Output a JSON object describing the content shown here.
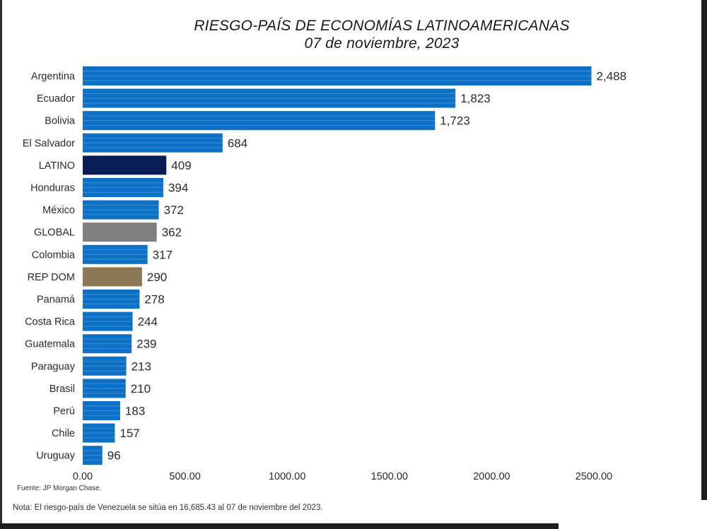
{
  "title": {
    "line1": "RIESGO-PAÍS DE ECONOMÍAS LATINOAMERICANAS",
    "line2": "07 de noviembre, 2023"
  },
  "chart_data": {
    "type": "bar",
    "orientation": "horizontal",
    "title": "RIESGO-PAÍS DE ECONOMÍAS LATINOAMERICANAS 07 de noviembre, 2023",
    "categories": [
      "Argentina",
      "Ecuador",
      "Bolivia",
      "El Salvador",
      "LATINO",
      "Honduras",
      "México",
      "GLOBAL",
      "Colombia",
      "REP DOM",
      "Panamá",
      "Costa Rica",
      "Guatemala",
      "Paraguay",
      "Brasil",
      "Perú",
      "Chile",
      "Uruguay"
    ],
    "values": [
      2488,
      1823,
      1723,
      684,
      409,
      394,
      372,
      362,
      317,
      290,
      278,
      244,
      239,
      213,
      210,
      183,
      157,
      96
    ],
    "value_labels": [
      "2,488",
      "1,823",
      "1,723",
      "684",
      "409",
      "394",
      "372",
      "362",
      "317",
      "290",
      "278",
      "244",
      "239",
      "213",
      "210",
      "183",
      "157",
      "96"
    ],
    "colors": [
      "#0c70c6",
      "#0c70c6",
      "#0c70c6",
      "#0c70c6",
      "#0b1d55",
      "#0c70c6",
      "#0c70c6",
      "#808080",
      "#0c70c6",
      "#8a7954",
      "#0c70c6",
      "#0c70c6",
      "#0c70c6",
      "#0c70c6",
      "#0c70c6",
      "#0c70c6",
      "#0c70c6",
      "#0c70c6"
    ],
    "xlim": [
      0,
      2500
    ],
    "xticks": [
      0,
      500,
      1000,
      1500,
      2000,
      2500
    ],
    "xtick_labels": [
      "0.00",
      "500.00",
      "1000.00",
      "1500.00",
      "2000.00",
      "2500.00"
    ],
    "xlabel": "",
    "ylabel": "",
    "grid": false
  },
  "source": "Fuente: JP Morgan Chase.",
  "note": "Nota: El riesgo-país de Venezuela se sitúa en 16,685.43 al 07 de noviembre del 2023."
}
